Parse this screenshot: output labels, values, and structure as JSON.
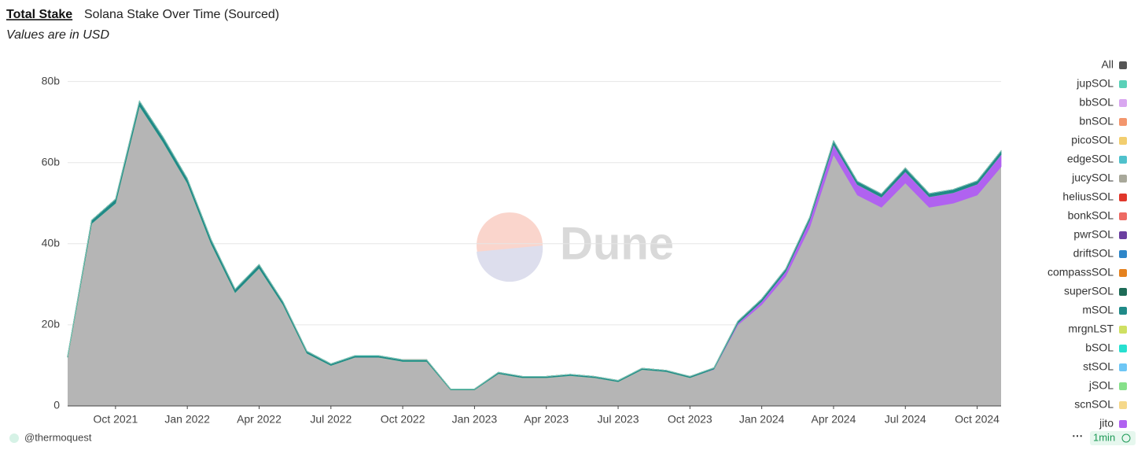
{
  "header": {
    "tab": "Total Stake",
    "dashboard_title": "Solana Stake Over Time (Sourced)"
  },
  "chart_data": {
    "type": "stacked_area",
    "subtitle": "Values are in USD",
    "x": [
      "2021-08",
      "2021-09",
      "2021-10",
      "2021-11",
      "2021-12",
      "2022-01",
      "2022-02",
      "2022-03",
      "2022-04",
      "2022-05",
      "2022-06",
      "2022-07",
      "2022-08",
      "2022-09",
      "2022-10",
      "2022-11",
      "2022-12",
      "2023-01",
      "2023-02",
      "2023-03",
      "2023-04",
      "2023-05",
      "2023-06",
      "2023-07",
      "2023-08",
      "2023-09",
      "2023-10",
      "2023-11",
      "2023-12",
      "2024-01",
      "2024-02",
      "2024-03",
      "2024-04",
      "2024-05",
      "2024-06",
      "2024-07",
      "2024-08",
      "2024-09",
      "2024-10",
      "2024-11"
    ],
    "xlim": [
      "2021-08",
      "2024-11"
    ],
    "xticks": [
      {
        "value": "2021-10",
        "label": "Oct 2021"
      },
      {
        "value": "2022-01",
        "label": "Jan 2022"
      },
      {
        "value": "2022-04",
        "label": "Apr 2022"
      },
      {
        "value": "2022-07",
        "label": "Jul 2022"
      },
      {
        "value": "2022-10",
        "label": "Oct 2022"
      },
      {
        "value": "2023-01",
        "label": "Jan 2023"
      },
      {
        "value": "2023-04",
        "label": "Apr 2023"
      },
      {
        "value": "2023-07",
        "label": "Jul 2023"
      },
      {
        "value": "2023-10",
        "label": "Oct 2023"
      },
      {
        "value": "2024-01",
        "label": "Jan 2024"
      },
      {
        "value": "2024-04",
        "label": "Apr 2024"
      },
      {
        "value": "2024-07",
        "label": "Jul 2024"
      },
      {
        "value": "2024-10",
        "label": "Oct 2024"
      }
    ],
    "ylim": [
      0,
      84
    ],
    "yticks": [
      0,
      {
        "value": 20,
        "label": "20b"
      },
      {
        "value": 40,
        "label": "40b"
      },
      {
        "value": 60,
        "label": "60b"
      },
      {
        "value": 80,
        "label": "80b"
      }
    ],
    "grid": true,
    "series": [
      {
        "name": "All",
        "color": "#b5b5b5",
        "values": [
          12,
          45,
          50,
          74,
          65,
          55,
          40,
          28,
          34,
          25,
          13,
          10,
          12,
          12,
          11,
          11,
          4,
          4,
          8,
          7,
          7,
          7.5,
          7,
          6,
          9,
          8.5,
          7,
          9,
          20,
          25,
          32,
          44,
          62,
          52,
          49,
          55,
          49,
          50,
          52,
          59
        ]
      },
      {
        "name": "jupSOL",
        "color": "#5ad1b8",
        "values": [
          0,
          0,
          0,
          0,
          0,
          0,
          0,
          0,
          0,
          0,
          0,
          0,
          0,
          0,
          0,
          0,
          0,
          0,
          0,
          0,
          0,
          0,
          0,
          0,
          0,
          0,
          0,
          0,
          0,
          0,
          0,
          0,
          0,
          0,
          0,
          0,
          0,
          0,
          0,
          0
        ]
      },
      {
        "name": "bbSOL",
        "color": "#d9a7f0",
        "values": [
          0,
          0,
          0,
          0,
          0,
          0,
          0,
          0,
          0,
          0,
          0,
          0,
          0,
          0,
          0,
          0,
          0,
          0,
          0,
          0,
          0,
          0,
          0,
          0,
          0,
          0,
          0,
          0,
          0,
          0,
          0,
          0,
          0,
          0,
          0,
          0,
          0,
          0,
          0,
          0
        ]
      },
      {
        "name": "bnSOL",
        "color": "#f3966d",
        "values": [
          0,
          0,
          0,
          0,
          0,
          0,
          0,
          0,
          0,
          0,
          0,
          0,
          0,
          0,
          0,
          0,
          0,
          0,
          0,
          0,
          0,
          0,
          0,
          0,
          0,
          0,
          0,
          0,
          0,
          0,
          0,
          0,
          0,
          0,
          0,
          0,
          0,
          0,
          0,
          0
        ]
      },
      {
        "name": "picoSOL",
        "color": "#f2ce6f",
        "values": [
          0,
          0,
          0,
          0,
          0,
          0,
          0,
          0,
          0,
          0,
          0,
          0,
          0,
          0,
          0,
          0,
          0,
          0,
          0,
          0,
          0,
          0,
          0,
          0,
          0,
          0,
          0,
          0,
          0,
          0,
          0,
          0,
          0,
          0,
          0,
          0,
          0,
          0,
          0,
          0
        ]
      },
      {
        "name": "edgeSOL",
        "color": "#4fc1cc",
        "values": [
          0,
          0,
          0,
          0,
          0,
          0,
          0,
          0,
          0,
          0,
          0,
          0,
          0,
          0,
          0,
          0,
          0,
          0,
          0,
          0,
          0,
          0,
          0,
          0,
          0,
          0,
          0,
          0,
          0,
          0,
          0,
          0,
          0,
          0,
          0,
          0,
          0,
          0,
          0,
          0
        ]
      },
      {
        "name": "jucySOL",
        "color": "#a8a89a",
        "values": [
          0,
          0,
          0,
          0,
          0,
          0,
          0,
          0,
          0,
          0,
          0,
          0,
          0,
          0,
          0,
          0,
          0,
          0,
          0,
          0,
          0,
          0,
          0,
          0,
          0,
          0,
          0,
          0,
          0,
          0,
          0,
          0,
          0,
          0,
          0,
          0,
          0,
          0,
          0,
          0
        ]
      },
      {
        "name": "heliusSOL",
        "color": "#e0372b",
        "values": [
          0,
          0,
          0,
          0,
          0,
          0,
          0,
          0,
          0,
          0,
          0,
          0,
          0,
          0,
          0,
          0,
          0,
          0,
          0,
          0,
          0,
          0,
          0,
          0,
          0,
          0,
          0,
          0,
          0,
          0,
          0,
          0,
          0,
          0,
          0,
          0,
          0,
          0,
          0,
          0
        ]
      },
      {
        "name": "bonkSOL",
        "color": "#ed6a63",
        "values": [
          0,
          0,
          0,
          0,
          0,
          0,
          0,
          0,
          0,
          0,
          0,
          0,
          0,
          0,
          0,
          0,
          0,
          0,
          0,
          0,
          0,
          0,
          0,
          0,
          0,
          0,
          0,
          0,
          0,
          0,
          0,
          0,
          0,
          0,
          0,
          0,
          0,
          0,
          0,
          0
        ]
      },
      {
        "name": "pwrSOL",
        "color": "#6b3fa0",
        "values": [
          0,
          0,
          0,
          0,
          0,
          0,
          0,
          0,
          0,
          0,
          0,
          0,
          0,
          0,
          0,
          0,
          0,
          0,
          0,
          0,
          0,
          0,
          0,
          0,
          0,
          0,
          0,
          0,
          0,
          0,
          0,
          0,
          0,
          0,
          0,
          0,
          0,
          0,
          0,
          0
        ]
      },
      {
        "name": "driftSOL",
        "color": "#2e86c8",
        "values": [
          0,
          0,
          0,
          0,
          0,
          0,
          0,
          0,
          0,
          0,
          0,
          0,
          0,
          0,
          0,
          0,
          0,
          0,
          0,
          0,
          0,
          0,
          0,
          0,
          0,
          0,
          0,
          0,
          0,
          0,
          0,
          0,
          0,
          0,
          0,
          0,
          0,
          0,
          0,
          0
        ]
      },
      {
        "name": "compassSOL",
        "color": "#e5821f",
        "values": [
          0,
          0,
          0,
          0,
          0,
          0,
          0,
          0,
          0,
          0,
          0,
          0,
          0,
          0,
          0,
          0,
          0,
          0,
          0,
          0,
          0,
          0,
          0,
          0,
          0,
          0,
          0,
          0,
          0,
          0,
          0,
          0,
          0,
          0,
          0,
          0,
          0,
          0,
          0,
          0
        ]
      },
      {
        "name": "superSOL",
        "color": "#1d6b57",
        "values": [
          0,
          0,
          0,
          0,
          0,
          0,
          0,
          0,
          0,
          0,
          0,
          0,
          0,
          0,
          0,
          0,
          0,
          0,
          0,
          0,
          0,
          0,
          0,
          0,
          0,
          0,
          0,
          0,
          0,
          0,
          0,
          0,
          0,
          0,
          0,
          0,
          0,
          0,
          0,
          0
        ]
      },
      {
        "name": "mSOL",
        "color": "#1f8a88",
        "values": [
          0.3,
          0.8,
          1,
          1.2,
          1.2,
          1.1,
          1,
          0.8,
          0.9,
          0.7,
          0.5,
          0.4,
          0.4,
          0.4,
          0.4,
          0.4,
          0.2,
          0.2,
          0.3,
          0.3,
          0.3,
          0.3,
          0.3,
          0.3,
          0.3,
          0.3,
          0.3,
          0.3,
          0.5,
          0.6,
          0.6,
          0.7,
          0.9,
          0.8,
          0.8,
          0.9,
          0.8,
          0.8,
          0.8,
          0.9
        ]
      },
      {
        "name": "mrgnLST",
        "color": "#cfe062",
        "values": [
          0,
          0,
          0,
          0,
          0,
          0,
          0,
          0,
          0,
          0,
          0,
          0,
          0,
          0,
          0,
          0,
          0,
          0,
          0,
          0,
          0,
          0,
          0,
          0,
          0,
          0,
          0,
          0,
          0,
          0,
          0,
          0,
          0,
          0,
          0,
          0,
          0,
          0,
          0,
          0
        ]
      },
      {
        "name": "bSOL",
        "color": "#27e0d0",
        "values": [
          0,
          0,
          0,
          0,
          0,
          0,
          0,
          0,
          0,
          0,
          0,
          0,
          0,
          0,
          0,
          0,
          0,
          0,
          0,
          0,
          0,
          0,
          0,
          0,
          0,
          0,
          0,
          0,
          0,
          0,
          0,
          0,
          0,
          0,
          0,
          0,
          0,
          0,
          0,
          0
        ]
      },
      {
        "name": "stSOL",
        "color": "#6ec6f5",
        "values": [
          0,
          0,
          0,
          0,
          0,
          0,
          0,
          0,
          0,
          0,
          0,
          0,
          0,
          0,
          0,
          0,
          0,
          0,
          0,
          0,
          0,
          0,
          0,
          0,
          0,
          0,
          0,
          0,
          0,
          0,
          0,
          0,
          0,
          0,
          0,
          0,
          0,
          0,
          0,
          0
        ]
      },
      {
        "name": "jSOL",
        "color": "#86e08a",
        "values": [
          0,
          0,
          0,
          0,
          0,
          0,
          0,
          0,
          0,
          0,
          0,
          0,
          0,
          0,
          0,
          0,
          0,
          0,
          0,
          0,
          0,
          0,
          0,
          0,
          0,
          0,
          0,
          0,
          0,
          0,
          0,
          0,
          0,
          0,
          0,
          0,
          0,
          0,
          0,
          0
        ]
      },
      {
        "name": "scnSOL",
        "color": "#f5d88a",
        "values": [
          0,
          0,
          0,
          0,
          0,
          0,
          0,
          0,
          0,
          0,
          0,
          0,
          0,
          0,
          0,
          0,
          0,
          0,
          0,
          0,
          0,
          0,
          0,
          0,
          0,
          0,
          0,
          0,
          0,
          0,
          0,
          0,
          0,
          0,
          0,
          0,
          0,
          0,
          0,
          0
        ]
      },
      {
        "name": "jito",
        "color": "#b062f0",
        "values": [
          0,
          0,
          0,
          0,
          0,
          0,
          0,
          0,
          0,
          0,
          0,
          0,
          0,
          0,
          0,
          0,
          0,
          0,
          0,
          0,
          0,
          0,
          0,
          0,
          0,
          0,
          0,
          0.1,
          0.4,
          0.8,
          1.2,
          1.8,
          2.5,
          2.6,
          2.5,
          2.8,
          2.6,
          2.6,
          2.7,
          3
        ]
      }
    ]
  },
  "watermark": "Dune",
  "footer": {
    "author": "@thermoquest",
    "refresh": "1min"
  }
}
